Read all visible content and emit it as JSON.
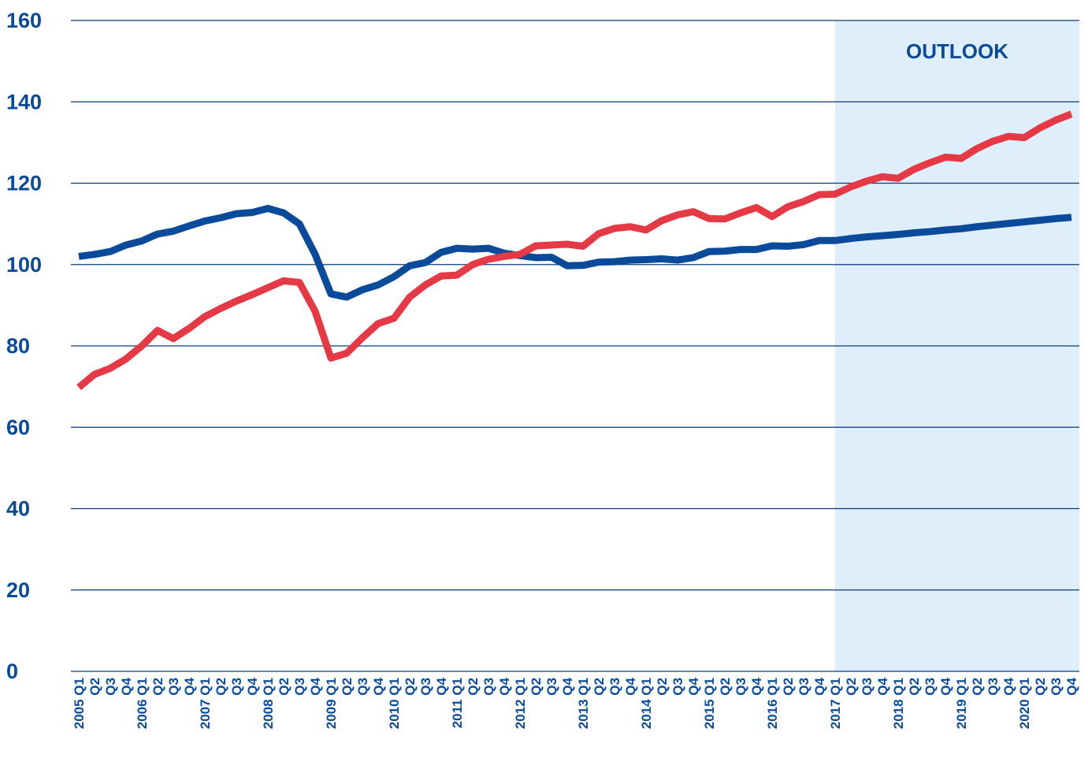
{
  "chart_data": {
    "type": "line",
    "categories": [
      "2005 Q1",
      "Q2",
      "Q3",
      "Q4",
      "2006 Q1",
      "Q2",
      "Q3",
      "Q4",
      "2007 Q1",
      "Q2",
      "Q3",
      "Q4",
      "2008 Q1",
      "Q2",
      "Q3",
      "Q4",
      "2009 Q1",
      "Q2",
      "Q3",
      "Q4",
      "2010 Q1",
      "Q2",
      "Q3",
      "Q4",
      "2011 Q1",
      "Q2",
      "Q3",
      "Q4",
      "2012 Q1",
      "Q2",
      "Q3",
      "Q4",
      "2013 Q1",
      "Q2",
      "Q3",
      "Q4",
      "2014 Q1",
      "Q2",
      "Q3",
      "Q4",
      "2015 Q1",
      "Q2",
      "Q3",
      "Q4",
      "2016 Q1",
      "Q2",
      "Q3",
      "Q4",
      "2017 Q1",
      "Q2",
      "Q3",
      "Q4",
      "2018 Q1",
      "Q2",
      "Q3",
      "Q4",
      "2019 Q1",
      "Q2",
      "Q3",
      "Q4",
      "2020 Q1",
      "Q2",
      "Q3",
      "Q4"
    ],
    "series": [
      {
        "color": "#0a4a9a",
        "values": [
          102,
          102.5,
          103.2,
          104.8,
          105.8,
          107.5,
          108.2,
          109.5,
          110.7,
          111.5,
          112.5,
          112.8,
          113.8,
          112.7,
          110,
          102.5,
          92.8,
          92,
          93.8,
          95,
          97,
          99.7,
          100.5,
          103,
          104,
          103.8,
          104,
          102.8,
          102.2,
          101.7,
          101.8,
          99.7,
          99.8,
          100.6,
          100.7,
          101.1,
          101.2,
          101.4,
          101.1,
          101.7,
          103.2,
          103.3,
          103.7,
          103.7,
          104.6,
          104.5,
          104.9,
          105.9,
          105.9,
          106.4,
          106.8,
          107.1,
          107.4,
          107.8,
          108.1,
          108.5,
          108.8,
          109.3,
          109.7,
          110.1,
          110.5,
          110.9,
          111.3,
          111.6
        ]
      },
      {
        "color": "#e63946",
        "values": [
          69.8,
          73,
          74.5,
          76.8,
          80,
          83.8,
          81.8,
          84.3,
          87.2,
          89.2,
          91,
          92.6,
          94.3,
          96,
          95.6,
          88.5,
          77,
          78.2,
          82,
          85.5,
          86.8,
          92,
          95,
          97.2,
          97.4,
          100,
          101.3,
          102,
          102.5,
          104.6,
          104.8,
          105,
          104.5,
          107.6,
          108.9,
          109.3,
          108.5,
          110.8,
          112.2,
          113,
          111.3,
          111.2,
          112.7,
          114,
          111.8,
          114.2,
          115.5,
          117.2,
          117.3,
          119.1,
          120.5,
          121.6,
          121.2,
          123.4,
          125,
          126.4,
          126.1,
          128.5,
          130.3,
          131.5,
          131.2,
          133.6,
          135.5,
          137
        ]
      }
    ],
    "ylim": [
      0,
      160
    ],
    "yticks": [
      0,
      20,
      40,
      60,
      80,
      100,
      120,
      140,
      160
    ],
    "grid": true,
    "shade": {
      "label": "OUTLOOK",
      "start": "2017 Q1",
      "color": "#dfeefb"
    }
  }
}
